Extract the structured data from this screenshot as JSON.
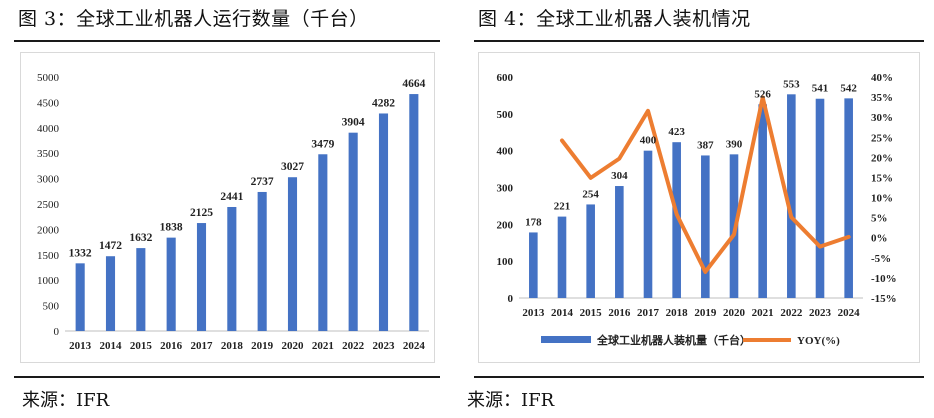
{
  "figures": [
    {
      "title": "图 3：全球工业机器人运行数量（千台）",
      "source": "来源：IFR"
    },
    {
      "title": "图 4：全球工业机器人装机情况",
      "source": "来源：IFR"
    }
  ],
  "colors": {
    "bar": "#4472C4",
    "line": "#ED7D31",
    "grid": "#d9d9d9",
    "axis": "#bfbfbf"
  },
  "chart_data": [
    {
      "type": "bar",
      "title": "",
      "xlabel": "",
      "ylabel": "",
      "categories": [
        "2013",
        "2014",
        "2015",
        "2016",
        "2017",
        "2018",
        "2019",
        "2020",
        "2021",
        "2022",
        "2023",
        "2024"
      ],
      "values": [
        1332,
        1472,
        1632,
        1838,
        2125,
        2441,
        2737,
        3027,
        3479,
        3904,
        4282,
        4664
      ],
      "ylim": [
        0,
        5000
      ],
      "yticks": [
        "0",
        "500",
        "1000",
        "1500",
        "2000",
        "2500",
        "3000",
        "3500",
        "4000",
        "4500",
        "5000"
      ],
      "grid": false,
      "data_labels": true
    },
    {
      "type": "bar",
      "title": "",
      "categories": [
        "2013",
        "2014",
        "2015",
        "2016",
        "2017",
        "2018",
        "2019",
        "2020",
        "2021",
        "2022",
        "2023",
        "2024"
      ],
      "series": [
        {
          "name": "全球工业机器人装机量（千台）",
          "type": "bar",
          "axis": "left",
          "values": [
            178,
            221,
            254,
            304,
            400,
            423,
            387,
            390,
            526,
            553,
            541,
            542
          ]
        },
        {
          "name": "YOY(%)",
          "type": "line",
          "axis": "right",
          "values": [
            null,
            24.2,
            14.9,
            19.7,
            31.6,
            5.8,
            -8.5,
            0.8,
            34.9,
            5.1,
            -2.2,
            0.2
          ]
        }
      ],
      "ylim": [
        0,
        600
      ],
      "y2lim": [
        -15,
        40
      ],
      "yticks": [
        "0",
        "100",
        "200",
        "300",
        "400",
        "500",
        "600"
      ],
      "y2ticks": [
        "-15%",
        "-10%",
        "-5%",
        "0%",
        "5%",
        "10%",
        "15%",
        "20%",
        "25%",
        "30%",
        "35%",
        "40%"
      ],
      "legend_position": "bottom",
      "grid": false,
      "data_labels": true
    }
  ]
}
